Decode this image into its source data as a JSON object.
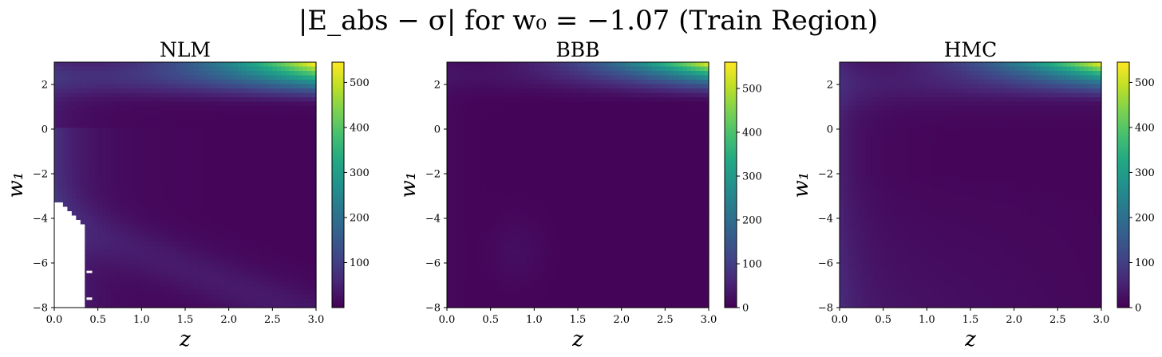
{
  "figure": {
    "title": "|E_abs − σ| for w₀ = −1.07 (Train Region)"
  },
  "chart_data": [
    {
      "type": "heatmap",
      "title": "NLM",
      "xlabel": "z",
      "ylabel": "w₁",
      "xlim": [
        0.0,
        3.0
      ],
      "ylim": [
        -8,
        3
      ],
      "xticks": [
        "0.0",
        "0.5",
        "1.0",
        "1.5",
        "2.0",
        "2.5",
        "3.0"
      ],
      "yticks": [
        "2",
        "0",
        "−2",
        "−4",
        "−6",
        "−8"
      ],
      "colorbar_ticks": [
        "100",
        "200",
        "300",
        "400",
        "500"
      ],
      "vmin": 0,
      "vmax": 545,
      "colormap": "viridis",
      "hotspot": {
        "z": 3.0,
        "w1": 3.0,
        "value": 545
      },
      "nan_region": "white region at low z (0.0–0.37) for w₁ below about −3.1"
    },
    {
      "type": "heatmap",
      "title": "BBB",
      "xlabel": "z",
      "ylabel": "w₁",
      "xlim": [
        0.0,
        3.0
      ],
      "ylim": [
        -8,
        3
      ],
      "xticks": [
        "0.0",
        "0.5",
        "1.0",
        "1.5",
        "2.0",
        "2.5",
        "3.0"
      ],
      "yticks": [
        "2",
        "0",
        "−2",
        "−4",
        "−6",
        "−8"
      ],
      "colorbar_ticks": [
        "0",
        "100",
        "200",
        "300",
        "400",
        "500"
      ],
      "vmin": 0,
      "vmax": 560,
      "colormap": "viridis",
      "hotspot": {
        "z": 3.0,
        "w1": 3.0,
        "value": 560
      }
    },
    {
      "type": "heatmap",
      "title": "HMC",
      "xlabel": "z",
      "ylabel": "w₁",
      "xlim": [
        0.0,
        3.0
      ],
      "ylim": [
        -8,
        3
      ],
      "xticks": [
        "0.0",
        "0.5",
        "1.0",
        "1.5",
        "2.0",
        "2.5",
        "3.0"
      ],
      "yticks": [
        "2",
        "0",
        "−2",
        "−4",
        "−6",
        "−8"
      ],
      "colorbar_ticks": [
        "0",
        "100",
        "200",
        "300",
        "400",
        "500"
      ],
      "vmin": 0,
      "vmax": 545,
      "colormap": "viridis",
      "hotspot": {
        "z": 3.0,
        "w1": 3.0,
        "value": 545
      }
    }
  ]
}
